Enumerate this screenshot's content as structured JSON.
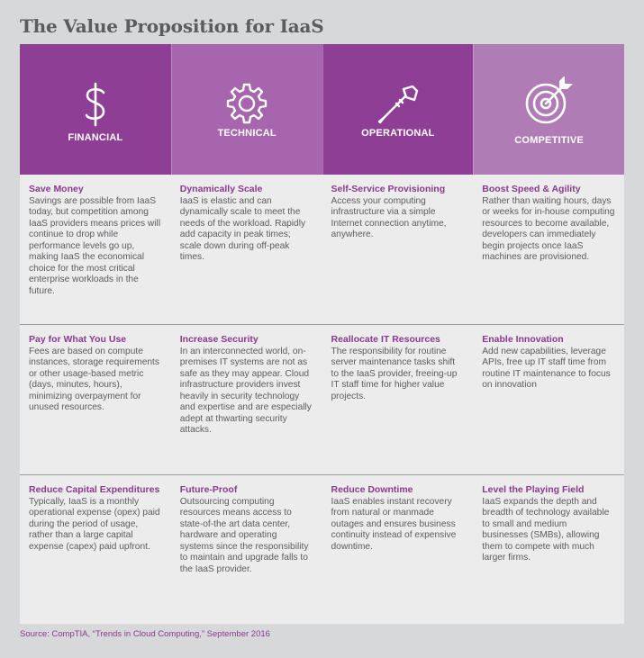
{
  "title": "The Value Proposition for IaaS",
  "colors": {
    "financial": "#8e3f95",
    "technical": "#a765ad",
    "operational": "#8e3f95",
    "competitive": "#b07cb6",
    "heading_text": "#8a3a8e",
    "body_text": "#5b5c5e"
  },
  "columns": [
    {
      "label": "FINANCIAL",
      "icon": "dollar-sign-icon"
    },
    {
      "label": "TECHNICAL",
      "icon": "gear-icon"
    },
    {
      "label": "OPERATIONAL",
      "icon": "screwdriver-icon"
    },
    {
      "label": "COMPETITIVE",
      "icon": "target-arrow-icon"
    }
  ],
  "rows": [
    [
      {
        "heading": "Save Money",
        "text": "Savings are possible from IaaS today, but competition among IaaS providers means prices will continue to drop while performance levels go up, making IaaS the economical choice for the most critical enterprise workloads in the future."
      },
      {
        "heading": "Dynamically Scale",
        "text": "IaaS is elastic and can dynamically scale to meet the needs of the workload. Rapidly add capacity in peak times; scale down during off-peak times."
      },
      {
        "heading": "Self-Service Provisioning",
        "text": "Access your computing infrastructure via a simple Internet connection anytime, anywhere."
      },
      {
        "heading": "Boost Speed & Agility",
        "text": "Rather than waiting hours, days or weeks for in-house computing resources to become available, developers can immediately begin projects once IaaS machines are provisioned."
      }
    ],
    [
      {
        "heading": "Pay for What You Use",
        "text": "Fees are based on compute instances, storage requirements or other usage-based metric (days, minutes, hours), minimizing overpayment for unused resources."
      },
      {
        "heading": "Increase Security",
        "text": "In an interconnected world, on-premises IT systems are not as safe as they may appear. Cloud infrastructure providers invest heavily in security technology and expertise and are especially adept at thwarting security attacks."
      },
      {
        "heading": "Reallocate IT Resources",
        "text": "The responsibility for routine server maintenance tasks shift to the IaaS provider, freeing-up IT staff time for higher value projects."
      },
      {
        "heading": "Enable Innovation",
        "text": "Add new capabilities, leverage APIs, free up IT staff time from routine IT maintenance to focus on innovation"
      }
    ],
    [
      {
        "heading": "Reduce Capital Expenditures",
        "text": "Typically, IaaS is a monthly operational expense (opex) paid during the period of usage, rather than a large capital expense (capex) paid upfront."
      },
      {
        "heading": "Future-Proof",
        "text": "Outsourcing computing resources means access to state-of-the art data center, hardware and operating systems since the responsibility to maintain and upgrade falls to the IaaS provider."
      },
      {
        "heading": "Reduce Downtime",
        "text": "IaaS enables instant recovery from natural or manmade outages and ensures business continuity instead of expensive downtime."
      },
      {
        "heading": "Level the Playing Field",
        "text": "IaaS expands the depth and breadth of technology available to small and medium businesses (SMBs), allowing them to compete with much larger firms."
      }
    ]
  ],
  "source": "Source: CompTIA, “Trends in Cloud Computing,” September 2016"
}
